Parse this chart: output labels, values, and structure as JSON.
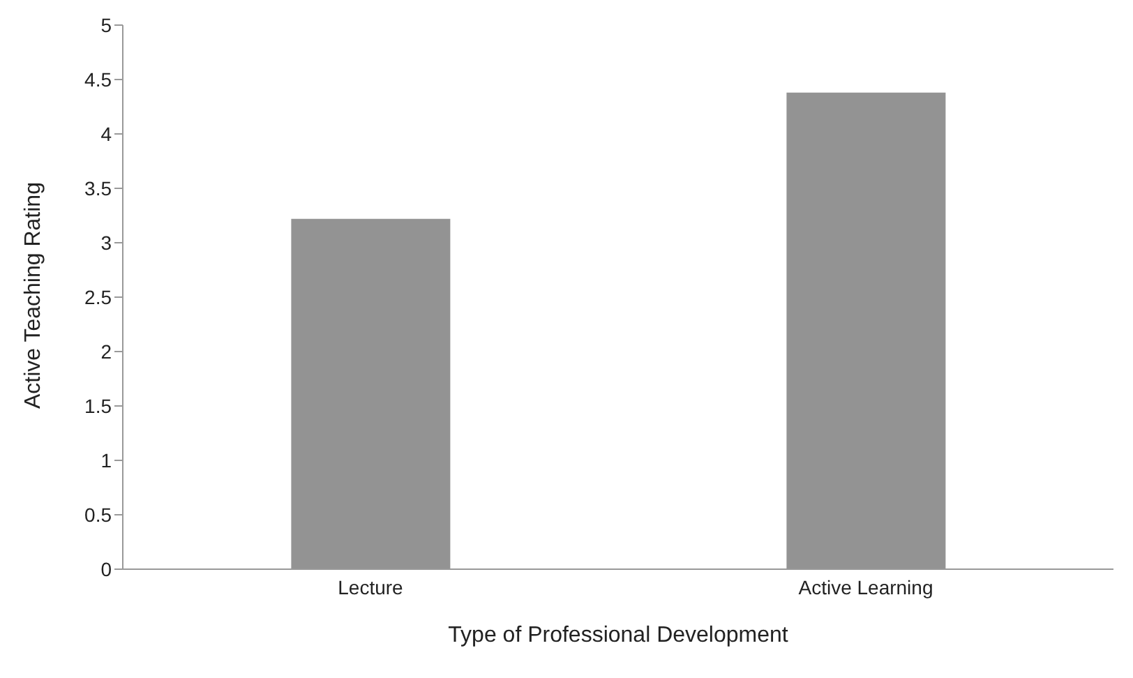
{
  "chart_data": {
    "type": "bar",
    "xlabel": "Type of Professional Development",
    "ylabel": "Active Teaching Rating",
    "categories": [
      "Lecture",
      "Active Learning"
    ],
    "values": [
      3.22,
      4.38
    ],
    "color": "#939393",
    "ylim": [
      0,
      5
    ],
    "yticks": [
      0,
      0.5,
      1,
      1.5,
      2,
      2.5,
      3,
      3.5,
      4,
      4.5,
      5
    ],
    "grid": false,
    "legend": false
  }
}
